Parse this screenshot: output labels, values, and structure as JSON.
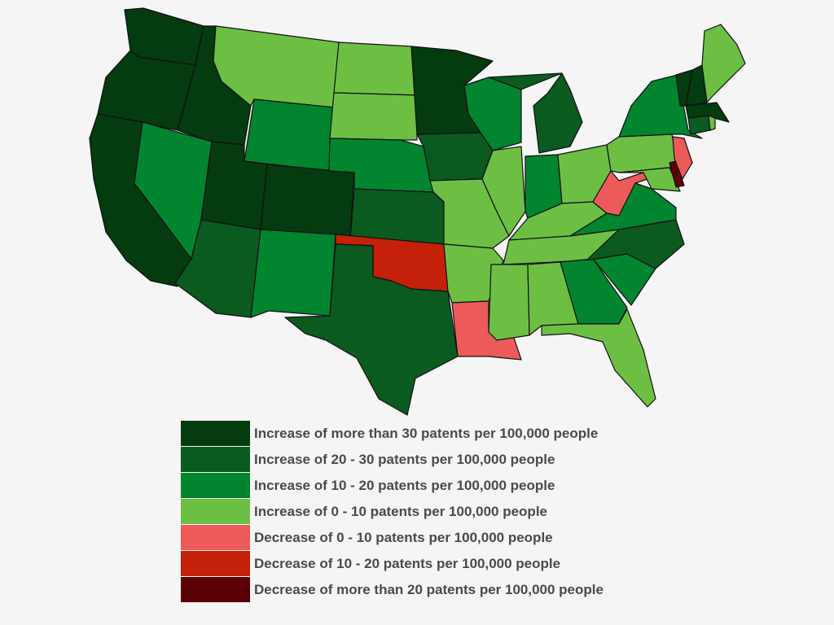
{
  "colors": {
    "inc_over_30": "#043b0f",
    "inc_20_30": "#0b5a1f",
    "inc_10_20": "#02852f",
    "inc_0_10": "#6dbf44",
    "dec_0_10": "#ec5a5a",
    "dec_10_20": "#c4200a",
    "dec_over_20": "#5a0005"
  },
  "legend": [
    {
      "key": "inc_over_30",
      "label": "Increase of more than 30 patents per 100,000 people"
    },
    {
      "key": "inc_20_30",
      "label": "Increase of 20 - 30 patents per 100,000 people"
    },
    {
      "key": "inc_10_20",
      "label": "Increase of 10 - 20 patents per 100,000 people"
    },
    {
      "key": "inc_0_10",
      "label": "Increase of 0 - 10 patents per 100,000 people"
    },
    {
      "key": "dec_0_10",
      "label": "Decrease of 0 - 10 patents per 100,000 people"
    },
    {
      "key": "dec_10_20",
      "label": "Decrease of 10 - 20 patents per 100,000 people"
    },
    {
      "key": "dec_over_20",
      "label": "Decrease of more than 20 patents per 100,000 people"
    }
  ],
  "states": {
    "WA": "inc_over_30",
    "OR": "inc_over_30",
    "CA": "inc_over_30",
    "ID": "inc_over_30",
    "UT": "inc_over_30",
    "CO": "inc_over_30",
    "MN": "inc_over_30",
    "VT": "inc_over_30",
    "NH": "inc_over_30",
    "MA": "inc_over_30",
    "NV": "inc_10_20",
    "WY": "inc_10_20",
    "NE": "inc_10_20",
    "NM": "inc_10_20",
    "WI": "inc_10_20",
    "IN": "inc_10_20",
    "NY": "inc_10_20",
    "VA": "inc_10_20",
    "GA": "inc_10_20",
    "SC": "inc_10_20",
    "AZ": "inc_20_30",
    "TX": "inc_20_30",
    "KS": "inc_20_30",
    "IA": "inc_20_30",
    "MI": "inc_20_30",
    "NC": "inc_20_30",
    "CT": "inc_20_30",
    "MT": "inc_0_10",
    "ND": "inc_0_10",
    "SD": "inc_0_10",
    "MO": "inc_0_10",
    "AR": "inc_0_10",
    "IL": "inc_0_10",
    "OH": "inc_0_10",
    "KY": "inc_0_10",
    "TN": "inc_0_10",
    "MS": "inc_0_10",
    "AL": "inc_0_10",
    "FL": "inc_0_10",
    "PA": "inc_0_10",
    "MD": "inc_0_10",
    "ME": "inc_0_10",
    "RI": "inc_0_10",
    "LA": "dec_0_10",
    "WV": "dec_0_10",
    "NJ": "dec_0_10",
    "OK": "dec_10_20",
    "DE": "dec_over_20"
  }
}
